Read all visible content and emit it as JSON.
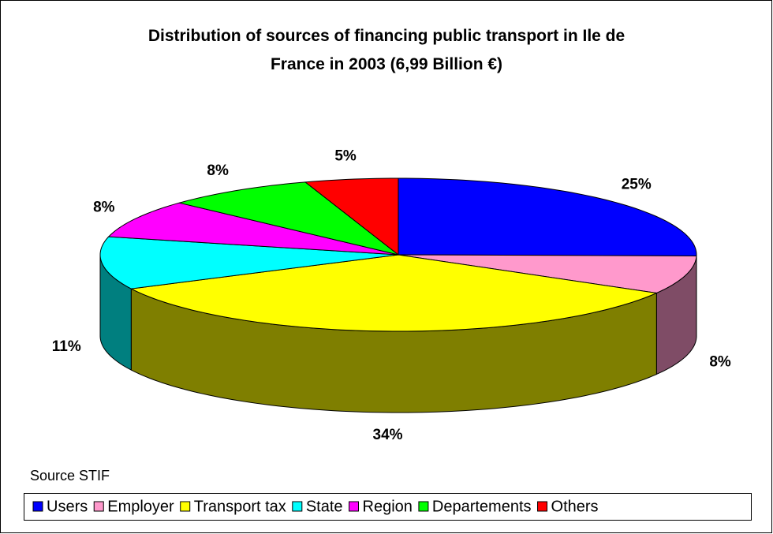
{
  "chart_data": {
    "type": "pie3d",
    "title": "Distribution of sources of financing public transport in Ile de France in 2003 (6,99 Billion €)",
    "annotation": "Source STIF",
    "categories": [
      "Users",
      "Employer",
      "Transport tax",
      "State",
      "Region",
      "Departements",
      "Others"
    ],
    "values": [
      25,
      8,
      34,
      11,
      8,
      8,
      5
    ],
    "value_labels": [
      "25%",
      "8%",
      "34%",
      "11%",
      "8%",
      "8%",
      "5%"
    ],
    "colors": [
      "#0000ff",
      "#ff99cc",
      "#ffff00",
      "#00ffff",
      "#ff00ff",
      "#00ff00",
      "#ff0000"
    ],
    "legend": "bottom"
  }
}
